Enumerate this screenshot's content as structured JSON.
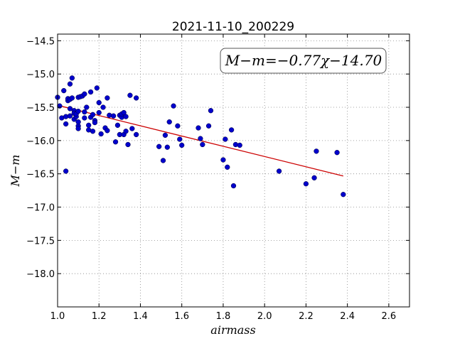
{
  "chart_data": {
    "type": "scatter",
    "title": "2021-11-10_200229",
    "xlabel": "airmass",
    "ylabel": "M−m",
    "annotation": "M−m=−0.77χ−14.70",
    "xlim": [
      1.0,
      2.7
    ],
    "ylim": [
      -18.5,
      -14.4
    ],
    "y_inverted": true,
    "grid": true,
    "xticks": [
      "1.0",
      "1.2",
      "1.4",
      "1.6",
      "1.8",
      "2.0",
      "2.2",
      "2.4",
      "2.6"
    ],
    "yticks": [
      "−14.5",
      "−15.0",
      "−15.5",
      "−16.0",
      "−16.5",
      "−17.0",
      "−17.5",
      "−18.0"
    ],
    "point_color": "#0000cc",
    "fit_color": "#cc0000",
    "fit": {
      "slope": -0.77,
      "intercept": -14.7,
      "x_range": [
        1.01,
        2.38
      ]
    },
    "points": [
      {
        "x": 1.0,
        "y": -15.35
      },
      {
        "x": 1.01,
        "y": -15.48
      },
      {
        "x": 1.02,
        "y": -15.66
      },
      {
        "x": 1.03,
        "y": -15.25
      },
      {
        "x": 1.04,
        "y": -15.75
      },
      {
        "x": 1.04,
        "y": -15.64
      },
      {
        "x": 1.05,
        "y": -15.4
      },
      {
        "x": 1.05,
        "y": -15.37
      },
      {
        "x": 1.04,
        "y": -16.46
      },
      {
        "x": 1.06,
        "y": -15.15
      },
      {
        "x": 1.06,
        "y": -15.38
      },
      {
        "x": 1.06,
        "y": -15.52
      },
      {
        "x": 1.06,
        "y": -15.63
      },
      {
        "x": 1.07,
        "y": -15.06
      },
      {
        "x": 1.07,
        "y": -15.36
      },
      {
        "x": 1.08,
        "y": -15.55
      },
      {
        "x": 1.08,
        "y": -15.59
      },
      {
        "x": 1.08,
        "y": -15.68
      },
      {
        "x": 1.09,
        "y": -15.64
      },
      {
        "x": 1.09,
        "y": -15.6
      },
      {
        "x": 1.1,
        "y": -15.35
      },
      {
        "x": 1.1,
        "y": -15.56
      },
      {
        "x": 1.1,
        "y": -15.78
      },
      {
        "x": 1.1,
        "y": -15.82
      },
      {
        "x": 1.1,
        "y": -15.72
      },
      {
        "x": 1.11,
        "y": -15.34
      },
      {
        "x": 1.12,
        "y": -15.33
      },
      {
        "x": 1.13,
        "y": -15.3
      },
      {
        "x": 1.13,
        "y": -15.57
      },
      {
        "x": 1.13,
        "y": -15.66
      },
      {
        "x": 1.14,
        "y": -15.5
      },
      {
        "x": 1.15,
        "y": -15.84
      },
      {
        "x": 1.15,
        "y": -15.77
      },
      {
        "x": 1.16,
        "y": -15.65
      },
      {
        "x": 1.16,
        "y": -15.27
      },
      {
        "x": 1.17,
        "y": -15.86
      },
      {
        "x": 1.17,
        "y": -15.61
      },
      {
        "x": 1.18,
        "y": -15.7
      },
      {
        "x": 1.18,
        "y": -15.73
      },
      {
        "x": 1.19,
        "y": -15.21
      },
      {
        "x": 1.2,
        "y": -15.43
      },
      {
        "x": 1.2,
        "y": -15.58
      },
      {
        "x": 1.21,
        "y": -15.9
      },
      {
        "x": 1.22,
        "y": -15.5
      },
      {
        "x": 1.23,
        "y": -15.81
      },
      {
        "x": 1.24,
        "y": -15.85
      },
      {
        "x": 1.24,
        "y": -15.36
      },
      {
        "x": 1.25,
        "y": -15.62
      },
      {
        "x": 1.27,
        "y": -15.63
      },
      {
        "x": 1.28,
        "y": -16.02
      },
      {
        "x": 1.29,
        "y": -15.77
      },
      {
        "x": 1.3,
        "y": -15.91
      },
      {
        "x": 1.3,
        "y": -15.62
      },
      {
        "x": 1.31,
        "y": -15.65
      },
      {
        "x": 1.31,
        "y": -15.6
      },
      {
        "x": 1.32,
        "y": -15.91
      },
      {
        "x": 1.32,
        "y": -15.58
      },
      {
        "x": 1.33,
        "y": -15.86
      },
      {
        "x": 1.33,
        "y": -15.64
      },
      {
        "x": 1.34,
        "y": -16.06
      },
      {
        "x": 1.35,
        "y": -15.32
      },
      {
        "x": 1.36,
        "y": -15.82
      },
      {
        "x": 1.38,
        "y": -15.91
      },
      {
        "x": 1.38,
        "y": -15.36
      },
      {
        "x": 1.49,
        "y": -16.09
      },
      {
        "x": 1.51,
        "y": -16.3
      },
      {
        "x": 1.52,
        "y": -15.92
      },
      {
        "x": 1.53,
        "y": -16.1
      },
      {
        "x": 1.54,
        "y": -15.72
      },
      {
        "x": 1.56,
        "y": -15.48
      },
      {
        "x": 1.58,
        "y": -15.78
      },
      {
        "x": 1.59,
        "y": -15.98
      },
      {
        "x": 1.6,
        "y": -16.07
      },
      {
        "x": 1.68,
        "y": -15.81
      },
      {
        "x": 1.69,
        "y": -15.97
      },
      {
        "x": 1.7,
        "y": -16.06
      },
      {
        "x": 1.73,
        "y": -15.78
      },
      {
        "x": 1.74,
        "y": -15.55
      },
      {
        "x": 1.8,
        "y": -16.29
      },
      {
        "x": 1.81,
        "y": -15.98
      },
      {
        "x": 1.82,
        "y": -16.4
      },
      {
        "x": 1.84,
        "y": -15.84
      },
      {
        "x": 1.85,
        "y": -16.68
      },
      {
        "x": 1.86,
        "y": -16.06
      },
      {
        "x": 1.88,
        "y": -16.07
      },
      {
        "x": 2.07,
        "y": -16.46
      },
      {
        "x": 2.2,
        "y": -16.65
      },
      {
        "x": 2.24,
        "y": -16.56
      },
      {
        "x": 2.25,
        "y": -16.16
      },
      {
        "x": 2.35,
        "y": -16.18
      },
      {
        "x": 2.38,
        "y": -16.81
      }
    ]
  }
}
